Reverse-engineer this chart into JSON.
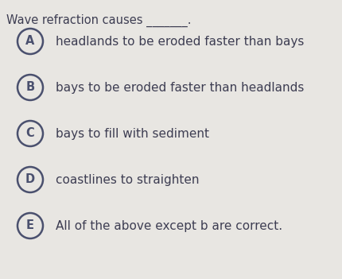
{
  "title_text": "Wave refraction causes _______.",
  "title_fontsize": 10.5,
  "title_color": "#3d3d52",
  "background_color": "#e8e6e2",
  "options": [
    {
      "label": "A",
      "text": "headlands to be eroded faster than bays"
    },
    {
      "label": "B",
      "text": "bays to be eroded faster than headlands"
    },
    {
      "label": "C",
      "text": "bays to fill with sediment"
    },
    {
      "label": "D",
      "text": "coastlines to straighten"
    },
    {
      "label": "E",
      "text": "All of the above except b are correct."
    }
  ],
  "circle_color": "#4a506e",
  "text_color": "#3d3d52",
  "option_fontsize": 11.0,
  "label_fontsize": 10.5,
  "fig_width": 4.3,
  "fig_height": 3.51,
  "dpi": 100
}
